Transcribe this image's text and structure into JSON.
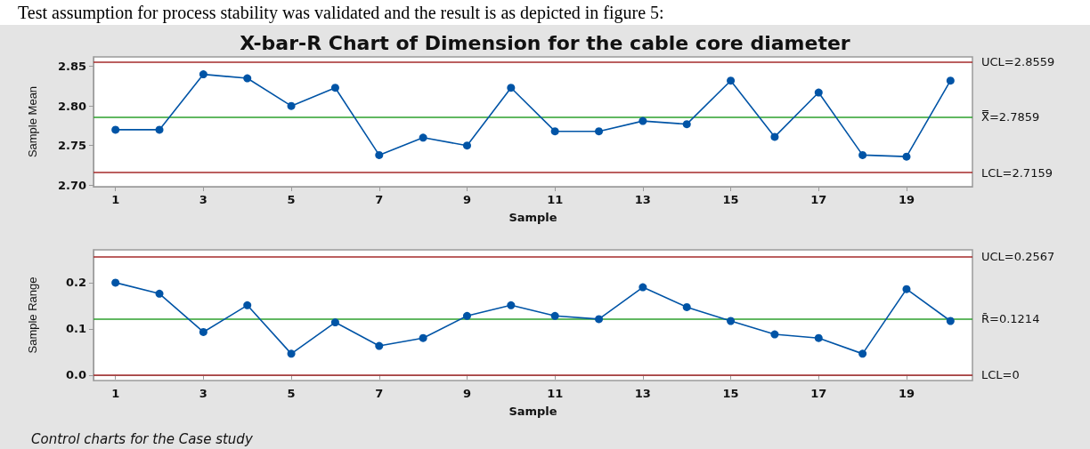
{
  "chart_data": [
    {
      "type": "line",
      "title": "X-bar-R Chart of Dimension for the cable core diameter",
      "annotations": [
        "Test assumption for process stability was validated and the result is as depicted in figure 5:"
      ],
      "xlabel": "Sample",
      "ylabel": "Sample Mean",
      "x": [
        1,
        2,
        3,
        4,
        5,
        6,
        7,
        8,
        9,
        10,
        11,
        12,
        13,
        14,
        15,
        16,
        17,
        18,
        19,
        20
      ],
      "marker": "circle",
      "xlim": [
        0.5,
        20.5
      ],
      "xticks": [
        1,
        3,
        5,
        7,
        9,
        11,
        13,
        15,
        17,
        19
      ],
      "ylim": [
        2.698,
        2.862
      ],
      "yticks": [
        {
          "value": 2.7,
          "label": "2.70"
        },
        2.75,
        {
          "value": 2.8,
          "label": "2.80"
        },
        2.85
      ],
      "series": [
        {
          "color": "#0054a6",
          "values": [
            2.77,
            2.77,
            2.84,
            2.835,
            2.8,
            2.823,
            2.738,
            2.76,
            2.75,
            2.823,
            2.768,
            2.768,
            2.781,
            2.777,
            2.832,
            2.761,
            2.817,
            2.738,
            2.736,
            2.832
          ]
        }
      ],
      "ref_lines": [
        {
          "axis": "y",
          "value": 2.8559,
          "label": "UCL=2.8559",
          "color": "#a52a2a"
        },
        {
          "axis": "y",
          "value": 2.7859,
          "label": "X̿=2.7859",
          "color": "#2ca02c"
        },
        {
          "axis": "y",
          "value": 2.7159,
          "label": "LCL=2.7159",
          "color": "#a52a2a"
        }
      ]
    },
    {
      "type": "line",
      "annotations": [
        "Control charts for the Case study"
      ],
      "xlabel": "Sample",
      "ylabel": "Sample Range",
      "x": [
        1,
        2,
        3,
        4,
        5,
        6,
        7,
        8,
        9,
        10,
        11,
        12,
        13,
        14,
        15,
        16,
        17,
        18,
        19,
        20
      ],
      "marker": "circle",
      "xlim": [
        0.5,
        20.5
      ],
      "xticks": [
        1,
        3,
        5,
        7,
        9,
        11,
        13,
        15,
        17,
        19
      ],
      "ylim": [
        -0.012,
        0.271
      ],
      "yticks": [
        {
          "value": 0,
          "label": "0.0"
        },
        0.1,
        0.2
      ],
      "series": [
        {
          "color": "#0054a6",
          "values": [
            0.2,
            0.176,
            0.093,
            0.151,
            0.046,
            0.114,
            0.063,
            0.08,
            0.128,
            0.151,
            0.128,
            0.121,
            0.19,
            0.147,
            0.117,
            0.088,
            0.08,
            0.046,
            0.186,
            0.117
          ]
        }
      ],
      "ref_lines": [
        {
          "axis": "y",
          "value": 0.2567,
          "label": "UCL=0.2567",
          "color": "#a52a2a"
        },
        {
          "axis": "y",
          "value": 0.1214,
          "label": "R̄=0.1214",
          "color": "#2ca02c"
        },
        {
          "axis": "y",
          "value": 0,
          "label": "LCL=0",
          "color": "#a52a2a"
        }
      ]
    }
  ]
}
